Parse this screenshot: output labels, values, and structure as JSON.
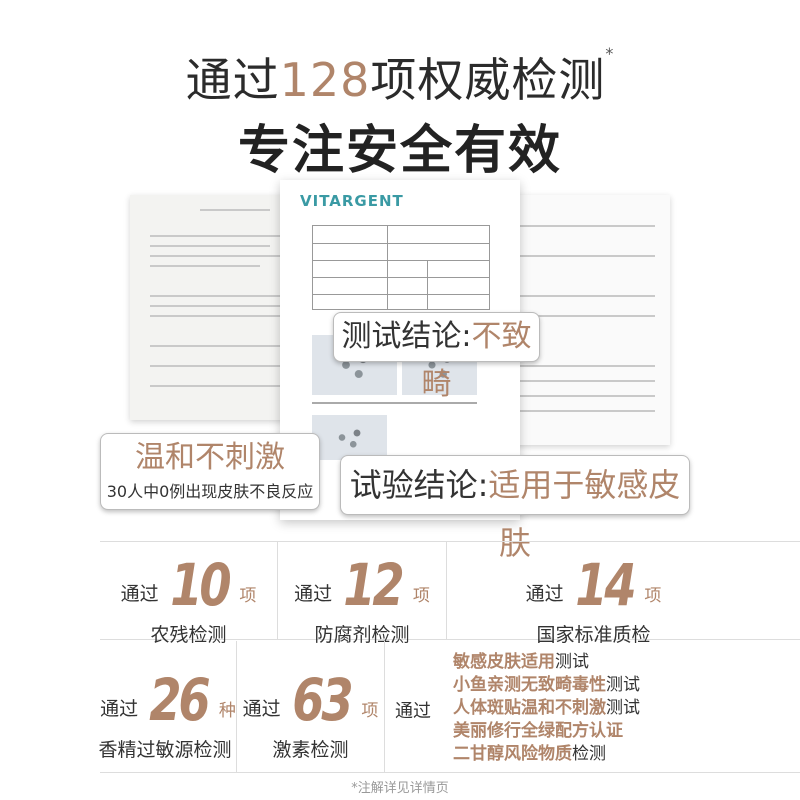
{
  "header": {
    "title_pre": "通过",
    "title_num": "128",
    "title_post": "项权威检测",
    "title_mark": "*",
    "subtitle": "专注安全有效"
  },
  "document": {
    "logo": "VITARGENT"
  },
  "callouts": {
    "c1_label": "测试结论:",
    "c1_value": "不致畸",
    "c2_title": "温和不刺激",
    "c2_sub": "30人中0例出现皮肤不良反应",
    "c3_label": "试验结论:",
    "c3_value": "适用于敏感皮肤"
  },
  "stats": [
    {
      "pre": "通过",
      "num": "10",
      "unit": "项",
      "label": "农残检测"
    },
    {
      "pre": "通过",
      "num": "12",
      "unit": "项",
      "label": "防腐剂检测"
    },
    {
      "pre": "通过",
      "num": "14",
      "unit": "项",
      "label": "国家标准质检"
    },
    {
      "pre": "通过",
      "num": "26",
      "unit": "种",
      "label": "香精过敏源检测"
    },
    {
      "pre": "通过",
      "num": "63",
      "unit": "项",
      "label": "激素检测"
    }
  ],
  "tests": {
    "pre": "通过",
    "items": [
      {
        "hl": "敏感皮肤适用",
        "rest": "测试"
      },
      {
        "hl": "小鱼亲测无致畸毒性",
        "rest": "测试"
      },
      {
        "hl": "人体斑贴温和不刺激",
        "rest": "测试"
      },
      {
        "hl": "美丽修行全绿配方认证",
        "rest": ""
      },
      {
        "hl": "二甘醇风险物质",
        "rest": "检测"
      }
    ]
  },
  "footnote": "*注解详见详情页",
  "colors": {
    "accent": "#b0856a",
    "text": "#333333"
  }
}
